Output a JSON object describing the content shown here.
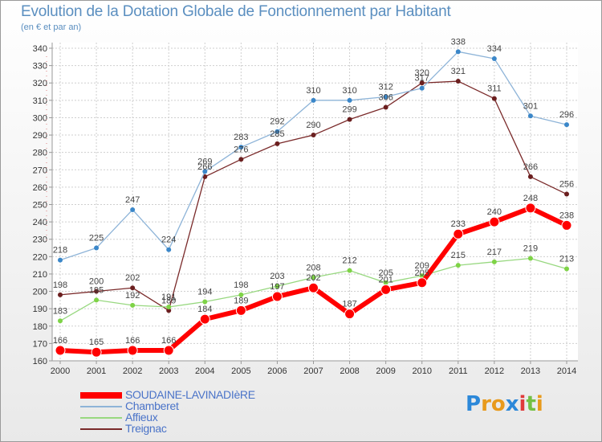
{
  "chart_data": {
    "type": "line",
    "title": "Evolution de la Dotation Globale de Fonctionnement par Habitant",
    "subtitle": "(en € et par an)",
    "categories": [
      "2000",
      "2001",
      "2002",
      "2003",
      "2004",
      "2005",
      "2006",
      "2007",
      "2008",
      "2009",
      "2010",
      "2011",
      "2012",
      "2013",
      "2014"
    ],
    "yticks": [
      "160",
      "170",
      "180",
      "190",
      "200",
      "210",
      "220",
      "230",
      "240",
      "250",
      "260",
      "270",
      "280",
      "290",
      "300",
      "310",
      "320",
      "330",
      "340"
    ],
    "ylim": [
      160,
      340
    ],
    "grid": true,
    "series": [
      {
        "name": "SOUDAINE-LAVINADIèRE",
        "color": "#ff0000",
        "values": [
          166,
          165,
          166,
          166,
          184,
          189,
          197,
          202,
          187,
          201,
          205,
          233,
          240,
          248,
          238
        ]
      },
      {
        "name": "Chamberet",
        "color": "#8eb4d8",
        "dot": "#3b87c9",
        "values": [
          218,
          225,
          247,
          224,
          269,
          283,
          292,
          310,
          310,
          312,
          317,
          338,
          334,
          301,
          296
        ]
      },
      {
        "name": "Affieux",
        "color": "#98d880",
        "dot": "#7ed346",
        "values": [
          183,
          195,
          192,
          191,
          194,
          198,
          203,
          208,
          212,
          205,
          209,
          215,
          217,
          219,
          213
        ]
      },
      {
        "name": "Treignac",
        "color": "#7a2a2a",
        "dot": "#6b1f1f",
        "values": [
          198,
          200,
          202,
          189,
          266,
          276,
          285,
          290,
          299,
          306,
          320,
          321,
          311,
          266,
          256
        ]
      }
    ]
  },
  "logo": {
    "text": "Proxiti",
    "letters": [
      "P",
      "r",
      "o",
      "x",
      "i",
      "t",
      "i"
    ],
    "colors": [
      "#2c88d9",
      "#e89a1c",
      "#e89a1c",
      "#2c88d9",
      "#e03a3a",
      "#74c043",
      "#e89a1c"
    ]
  }
}
